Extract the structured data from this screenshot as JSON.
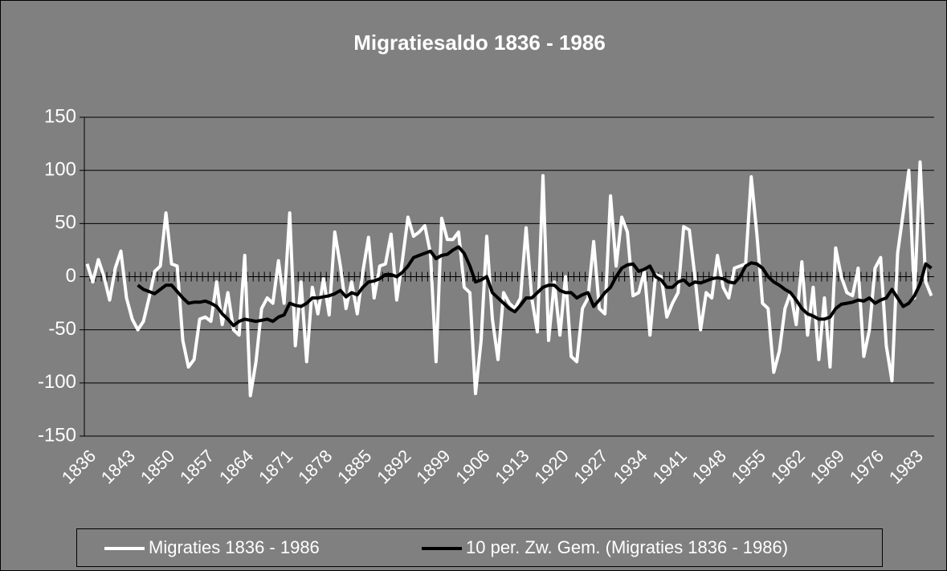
{
  "chart_data": {
    "type": "line",
    "title": "Migratiesaldo 1836 - 1986",
    "categories": [
      "1836",
      null,
      null,
      null,
      null,
      null,
      null,
      "1843",
      null,
      null,
      null,
      null,
      null,
      null,
      "1850",
      null,
      null,
      null,
      null,
      null,
      null,
      "1857",
      null,
      null,
      null,
      null,
      null,
      null,
      "1864",
      null,
      null,
      null,
      null,
      null,
      null,
      "1871",
      null,
      null,
      null,
      null,
      null,
      null,
      "1878",
      null,
      null,
      null,
      null,
      null,
      null,
      "1885",
      null,
      null,
      null,
      null,
      null,
      null,
      "1892",
      null,
      null,
      null,
      null,
      null,
      null,
      "1899",
      null,
      null,
      null,
      null,
      null,
      null,
      "1906",
      null,
      null,
      null,
      null,
      null,
      null,
      "1913",
      null,
      null,
      null,
      null,
      null,
      null,
      "1920",
      null,
      null,
      null,
      null,
      null,
      null,
      "1927",
      null,
      null,
      null,
      null,
      null,
      null,
      "1934",
      null,
      null,
      null,
      null,
      null,
      null,
      "1941",
      null,
      null,
      null,
      null,
      null,
      null,
      "1948",
      null,
      null,
      null,
      null,
      null,
      null,
      "1955",
      null,
      null,
      null,
      null,
      null,
      null,
      "1962",
      null,
      null,
      null,
      null,
      null,
      null,
      "1969",
      null,
      null,
      null,
      null,
      null,
      null,
      "1976",
      null,
      null,
      null,
      null,
      null,
      null,
      "1983",
      null,
      null,
      null
    ],
    "series": [
      {
        "name": "Migraties 1836 - 1986",
        "color": "#ffffff",
        "values": [
          12,
          -5,
          16,
          0,
          -22,
          8,
          24,
          -20,
          -40,
          -50,
          -42,
          -20,
          5,
          10,
          60,
          12,
          10,
          -60,
          -85,
          -78,
          -40,
          -38,
          -42,
          -5,
          -45,
          -15,
          -50,
          -55,
          20,
          -112,
          -80,
          -30,
          -20,
          -25,
          15,
          -25,
          60,
          -65,
          -5,
          -80,
          -10,
          -35,
          -2,
          -36,
          42,
          10,
          -30,
          -5,
          -35,
          5,
          37,
          -20,
          10,
          12,
          40,
          -22,
          15,
          56,
          38,
          42,
          48,
          22,
          -80,
          55,
          35,
          35,
          42,
          -10,
          -15,
          -110,
          -60,
          38,
          -40,
          -78,
          -15,
          -25,
          -30,
          -20,
          46,
          -20,
          -52,
          95,
          -60,
          -5,
          -55,
          0,
          -75,
          -80,
          -30,
          -20,
          33,
          -30,
          -35,
          76,
          10,
          56,
          42,
          -18,
          -15,
          5,
          -55,
          2,
          0,
          -38,
          -25,
          -15,
          47,
          44,
          0,
          -50,
          -15,
          -20,
          20,
          -10,
          -20,
          8,
          10,
          12,
          94,
          40,
          -25,
          -30,
          -90,
          -70,
          -30,
          -15,
          -45,
          14,
          -55,
          -10,
          -78,
          -20,
          -85,
          27,
          0,
          -15,
          -18,
          8,
          -75,
          -50,
          8,
          18,
          -65,
          -98,
          22,
          60,
          100,
          -20,
          108,
          -5,
          -18
        ]
      },
      {
        "name": "10 per. Zw. Gem. (Migraties 1836 - 1986)",
        "color": "#000000",
        "values": [
          null,
          null,
          null,
          null,
          null,
          null,
          null,
          null,
          null,
          -8,
          -12,
          -14,
          -16,
          -12,
          -8,
          -8,
          -14,
          -20,
          -25,
          -24,
          -24,
          -23,
          -25,
          -28,
          -35,
          -40,
          -46,
          -42,
          -40,
          -41,
          -42,
          -41,
          -40,
          -42,
          -38,
          -36,
          -25,
          -27,
          -28,
          -25,
          -20,
          -20,
          -19,
          -18,
          -16,
          -13,
          -19,
          -15,
          -17,
          -10,
          -5,
          -4,
          -2,
          2,
          2,
          0,
          4,
          10,
          18,
          20,
          22,
          24,
          17,
          20,
          21,
          25,
          28,
          22,
          10,
          -5,
          -3,
          0,
          -15,
          -20,
          -25,
          -30,
          -33,
          -27,
          -20,
          -20,
          -15,
          -10,
          -8,
          -8,
          -13,
          -15,
          -15,
          -20,
          -17,
          -15,
          -28,
          -22,
          -15,
          -10,
          0,
          8,
          11,
          12,
          5,
          7,
          10,
          0,
          -3,
          -10,
          -10,
          -5,
          -3,
          -8,
          -5,
          -6,
          -4,
          -2,
          -1,
          -2,
          -5,
          -6,
          0,
          10,
          13,
          12,
          8,
          0,
          -5,
          -8,
          -12,
          -15,
          -22,
          -30,
          -35,
          -37,
          -40,
          -40,
          -38,
          -30,
          -26,
          -25,
          -24,
          -22,
          -23,
          -20,
          -25,
          -22,
          -20,
          -12,
          -20,
          -28,
          -25,
          -18,
          -7,
          12,
          8
        ]
      }
    ],
    "ylim": [
      -150,
      150
    ],
    "yticks": [
      -150,
      -100,
      -50,
      0,
      50,
      100,
      150
    ],
    "grid": true,
    "legend": "bottom"
  }
}
